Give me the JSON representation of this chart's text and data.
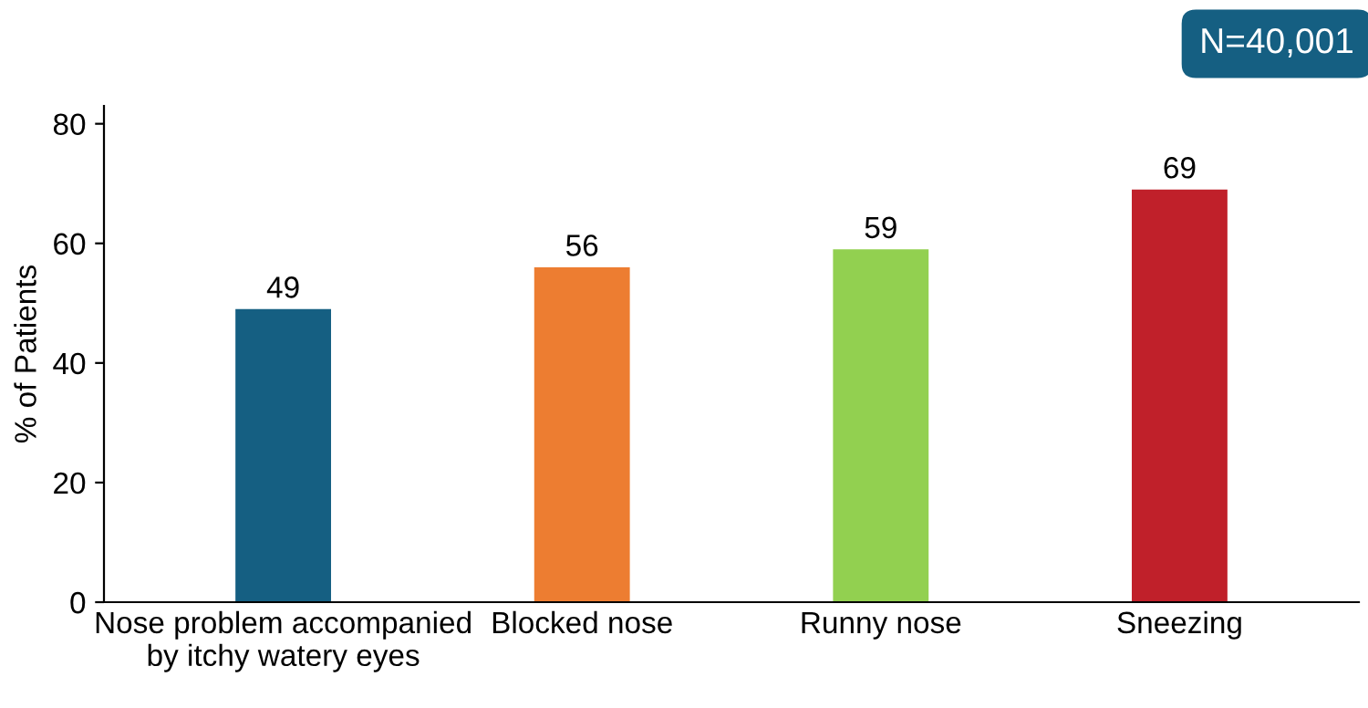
{
  "chart_data": {
    "type": "bar",
    "ylabel": "% of Patients",
    "categories": [
      "Nose problem accompanied\nby itchy watery eyes",
      "Blocked nose",
      "Runny nose",
      "Sneezing"
    ],
    "values": [
      49,
      56,
      59,
      69
    ],
    "colors": [
      "#155f82",
      "#ed7d31",
      "#92d050",
      "#c0202a"
    ],
    "ylim": [
      0,
      83
    ],
    "yticks": [
      0,
      20,
      40,
      60,
      80
    ],
    "grid": false,
    "data_labels": true,
    "annotations": [
      "N=40,001"
    ]
  }
}
